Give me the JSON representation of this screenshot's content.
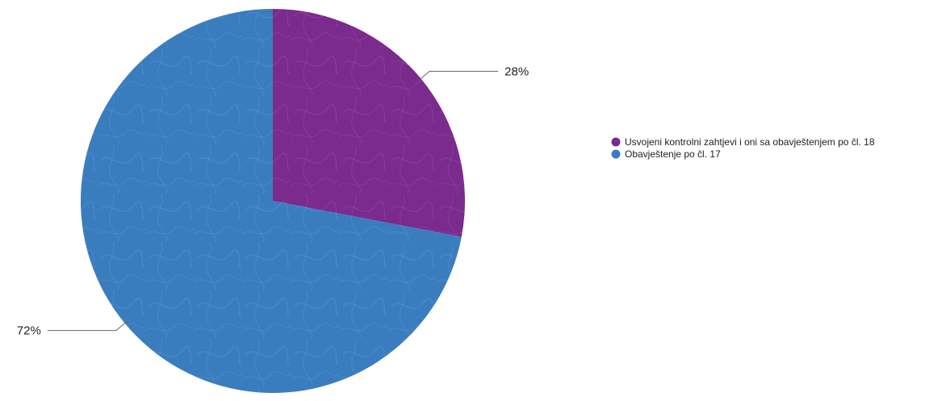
{
  "chart_data": {
    "type": "pie",
    "title": "",
    "slices": [
      {
        "label": "Usvojeni kontrolni zahtjevi i oni sa obavještenjem po čl. 18",
        "value": 28,
        "display": "28%",
        "color": "#7b2a8e"
      },
      {
        "label": "Obavještenje po čl. 17",
        "value": 72,
        "display": "72%",
        "color": "#3a7dbf"
      }
    ],
    "start_angle_deg": 0,
    "direction": "clockwise",
    "legend_position": "right"
  }
}
